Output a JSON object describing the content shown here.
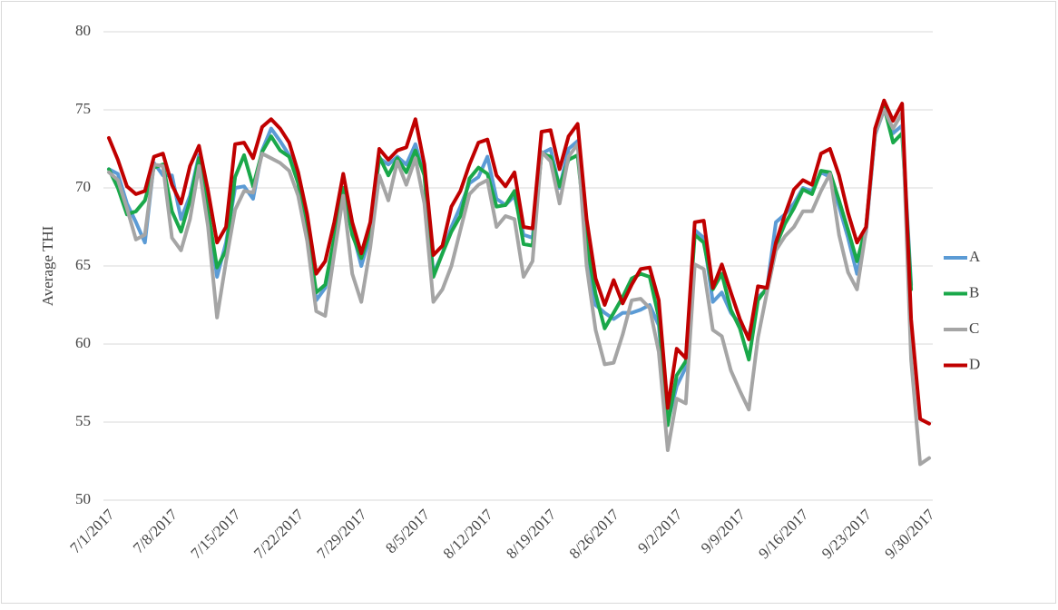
{
  "chart_data": {
    "type": "line",
    "y_label": "Average THI",
    "categories": [
      "7/1/2017",
      null,
      null,
      null,
      null,
      null,
      null,
      "7/8/2017",
      null,
      null,
      null,
      null,
      null,
      null,
      "7/15/2017",
      null,
      null,
      null,
      null,
      null,
      null,
      "7/22/2017",
      null,
      null,
      null,
      null,
      null,
      null,
      "7/29/2017",
      null,
      null,
      null,
      null,
      null,
      null,
      "8/5/2017",
      null,
      null,
      null,
      null,
      null,
      null,
      "8/12/2017",
      null,
      null,
      null,
      null,
      null,
      null,
      "8/19/2017",
      null,
      null,
      null,
      null,
      null,
      null,
      "8/26/2017",
      null,
      null,
      null,
      null,
      null,
      null,
      "9/2/2017",
      null,
      null,
      null,
      null,
      null,
      null,
      "9/9/2017",
      null,
      null,
      null,
      null,
      null,
      null,
      "9/16/2017",
      null,
      null,
      null,
      null,
      null,
      null,
      "9/23/2017",
      null,
      null,
      null,
      null,
      null,
      null,
      "9/30/2017"
    ],
    "series": [
      {
        "name": "A",
        "color": "#5b9bd5",
        "values": [
          71.2,
          70.9,
          69.0,
          67.8,
          66.5,
          71.6,
          70.8,
          70.8,
          68.0,
          69.5,
          72.1,
          68.5,
          64.3,
          66.5,
          70.0,
          70.1,
          69.3,
          72.4,
          73.8,
          73.0,
          72.1,
          70.3,
          67.2,
          62.8,
          63.6,
          66.6,
          69.8,
          67.3,
          65.0,
          67.0,
          71.9,
          71.5,
          72.0,
          71.5,
          72.8,
          70.8,
          64.5,
          65.8,
          67.5,
          68.8,
          70.3,
          70.7,
          72.0,
          69.3,
          68.9,
          69.5,
          67.0,
          66.8,
          72.2,
          72.5,
          70.0,
          72.5,
          73.0,
          66.0,
          62.5,
          62.0,
          61.6,
          62.0,
          62.0,
          62.2,
          62.5,
          61.2,
          55.0,
          57.3,
          58.5,
          67.3,
          66.8,
          62.7,
          63.3,
          62.0,
          61.3,
          60.5,
          63.0,
          63.5,
          67.8,
          68.3,
          69.0,
          70.0,
          69.8,
          71.0,
          70.7,
          68.8,
          66.8,
          64.5,
          67.2,
          73.4,
          75.0,
          73.5,
          74.0,
          63.8,
          null,
          null
        ]
      },
      {
        "name": "B",
        "color": "#1aa84a",
        "values": [
          71.2,
          70.0,
          68.3,
          68.5,
          69.2,
          71.3,
          71.5,
          68.5,
          67.2,
          69.2,
          71.9,
          68.5,
          64.9,
          66.0,
          70.7,
          72.1,
          70.1,
          72.3,
          73.3,
          72.4,
          72.0,
          70.3,
          67.3,
          63.3,
          63.8,
          66.8,
          70.0,
          67.0,
          65.5,
          67.3,
          72.0,
          70.8,
          71.9,
          71.0,
          72.4,
          70.8,
          64.3,
          65.8,
          67.2,
          68.2,
          70.6,
          71.3,
          70.9,
          68.8,
          68.9,
          69.8,
          66.4,
          66.3,
          72.2,
          72.0,
          70.1,
          71.8,
          72.1,
          66.5,
          63.2,
          61.0,
          62.0,
          63.0,
          64.2,
          64.5,
          64.3,
          61.7,
          54.8,
          58.0,
          58.9,
          67.0,
          66.5,
          63.5,
          64.5,
          62.2,
          61.0,
          59.0,
          62.8,
          63.6,
          66.3,
          67.7,
          68.7,
          69.9,
          69.6,
          71.1,
          71.0,
          69.2,
          67.3,
          65.3,
          67.5,
          73.5,
          75.2,
          72.9,
          73.5,
          63.5,
          null,
          null
        ]
      },
      {
        "name": "C",
        "color": "#a5a5a5",
        "values": [
          71.0,
          70.5,
          68.7,
          66.7,
          67.0,
          71.5,
          71.4,
          66.8,
          66.0,
          68.0,
          71.4,
          67.5,
          61.7,
          65.3,
          68.6,
          69.8,
          69.7,
          72.2,
          71.9,
          71.6,
          71.1,
          69.5,
          66.6,
          62.1,
          61.8,
          65.8,
          69.5,
          64.5,
          62.7,
          66.2,
          70.8,
          69.2,
          71.7,
          70.2,
          71.9,
          69.0,
          62.7,
          63.5,
          65.0,
          67.3,
          69.6,
          70.2,
          70.5,
          67.5,
          68.2,
          68.0,
          64.3,
          65.3,
          72.3,
          71.7,
          69.0,
          72.0,
          72.8,
          65.0,
          60.9,
          58.7,
          58.8,
          60.6,
          62.8,
          62.9,
          62.3,
          59.5,
          53.2,
          56.5,
          56.2,
          65.1,
          64.8,
          60.9,
          60.5,
          58.3,
          57.0,
          55.8,
          60.4,
          63.3,
          66.0,
          66.9,
          67.5,
          68.5,
          68.5,
          69.8,
          70.9,
          67.0,
          64.6,
          63.5,
          67.3,
          73.5,
          75.0,
          73.8,
          74.8,
          59.0,
          52.3,
          52.7
        ]
      },
      {
        "name": "D",
        "color": "#c00000",
        "values": [
          73.2,
          71.8,
          70.1,
          69.6,
          69.8,
          72.0,
          72.2,
          70.2,
          69.0,
          71.4,
          72.7,
          69.8,
          66.5,
          67.5,
          72.8,
          72.9,
          71.9,
          73.9,
          74.4,
          73.8,
          72.9,
          71.0,
          68.3,
          64.5,
          65.3,
          67.8,
          70.9,
          67.8,
          65.8,
          67.8,
          72.5,
          71.8,
          72.4,
          72.6,
          74.4,
          71.5,
          65.7,
          66.3,
          68.8,
          69.8,
          71.5,
          72.9,
          73.1,
          70.8,
          70.1,
          71.0,
          67.5,
          67.4,
          73.6,
          73.7,
          71.2,
          73.3,
          74.1,
          68.0,
          64.2,
          62.5,
          64.1,
          62.6,
          63.8,
          64.8,
          64.9,
          62.8,
          55.9,
          59.7,
          59.1,
          67.8,
          67.9,
          63.6,
          65.1,
          63.3,
          61.6,
          60.3,
          63.7,
          63.6,
          66.5,
          68.3,
          69.9,
          70.5,
          70.2,
          72.2,
          72.5,
          70.8,
          68.4,
          66.5,
          67.5,
          73.8,
          75.6,
          74.3,
          75.4,
          61.6,
          55.2,
          54.9
        ]
      }
    ],
    "ylim": [
      50,
      80
    ],
    "yticks": [
      50,
      55,
      60,
      65,
      70,
      75,
      80
    ],
    "grid": true,
    "legend": "right"
  }
}
